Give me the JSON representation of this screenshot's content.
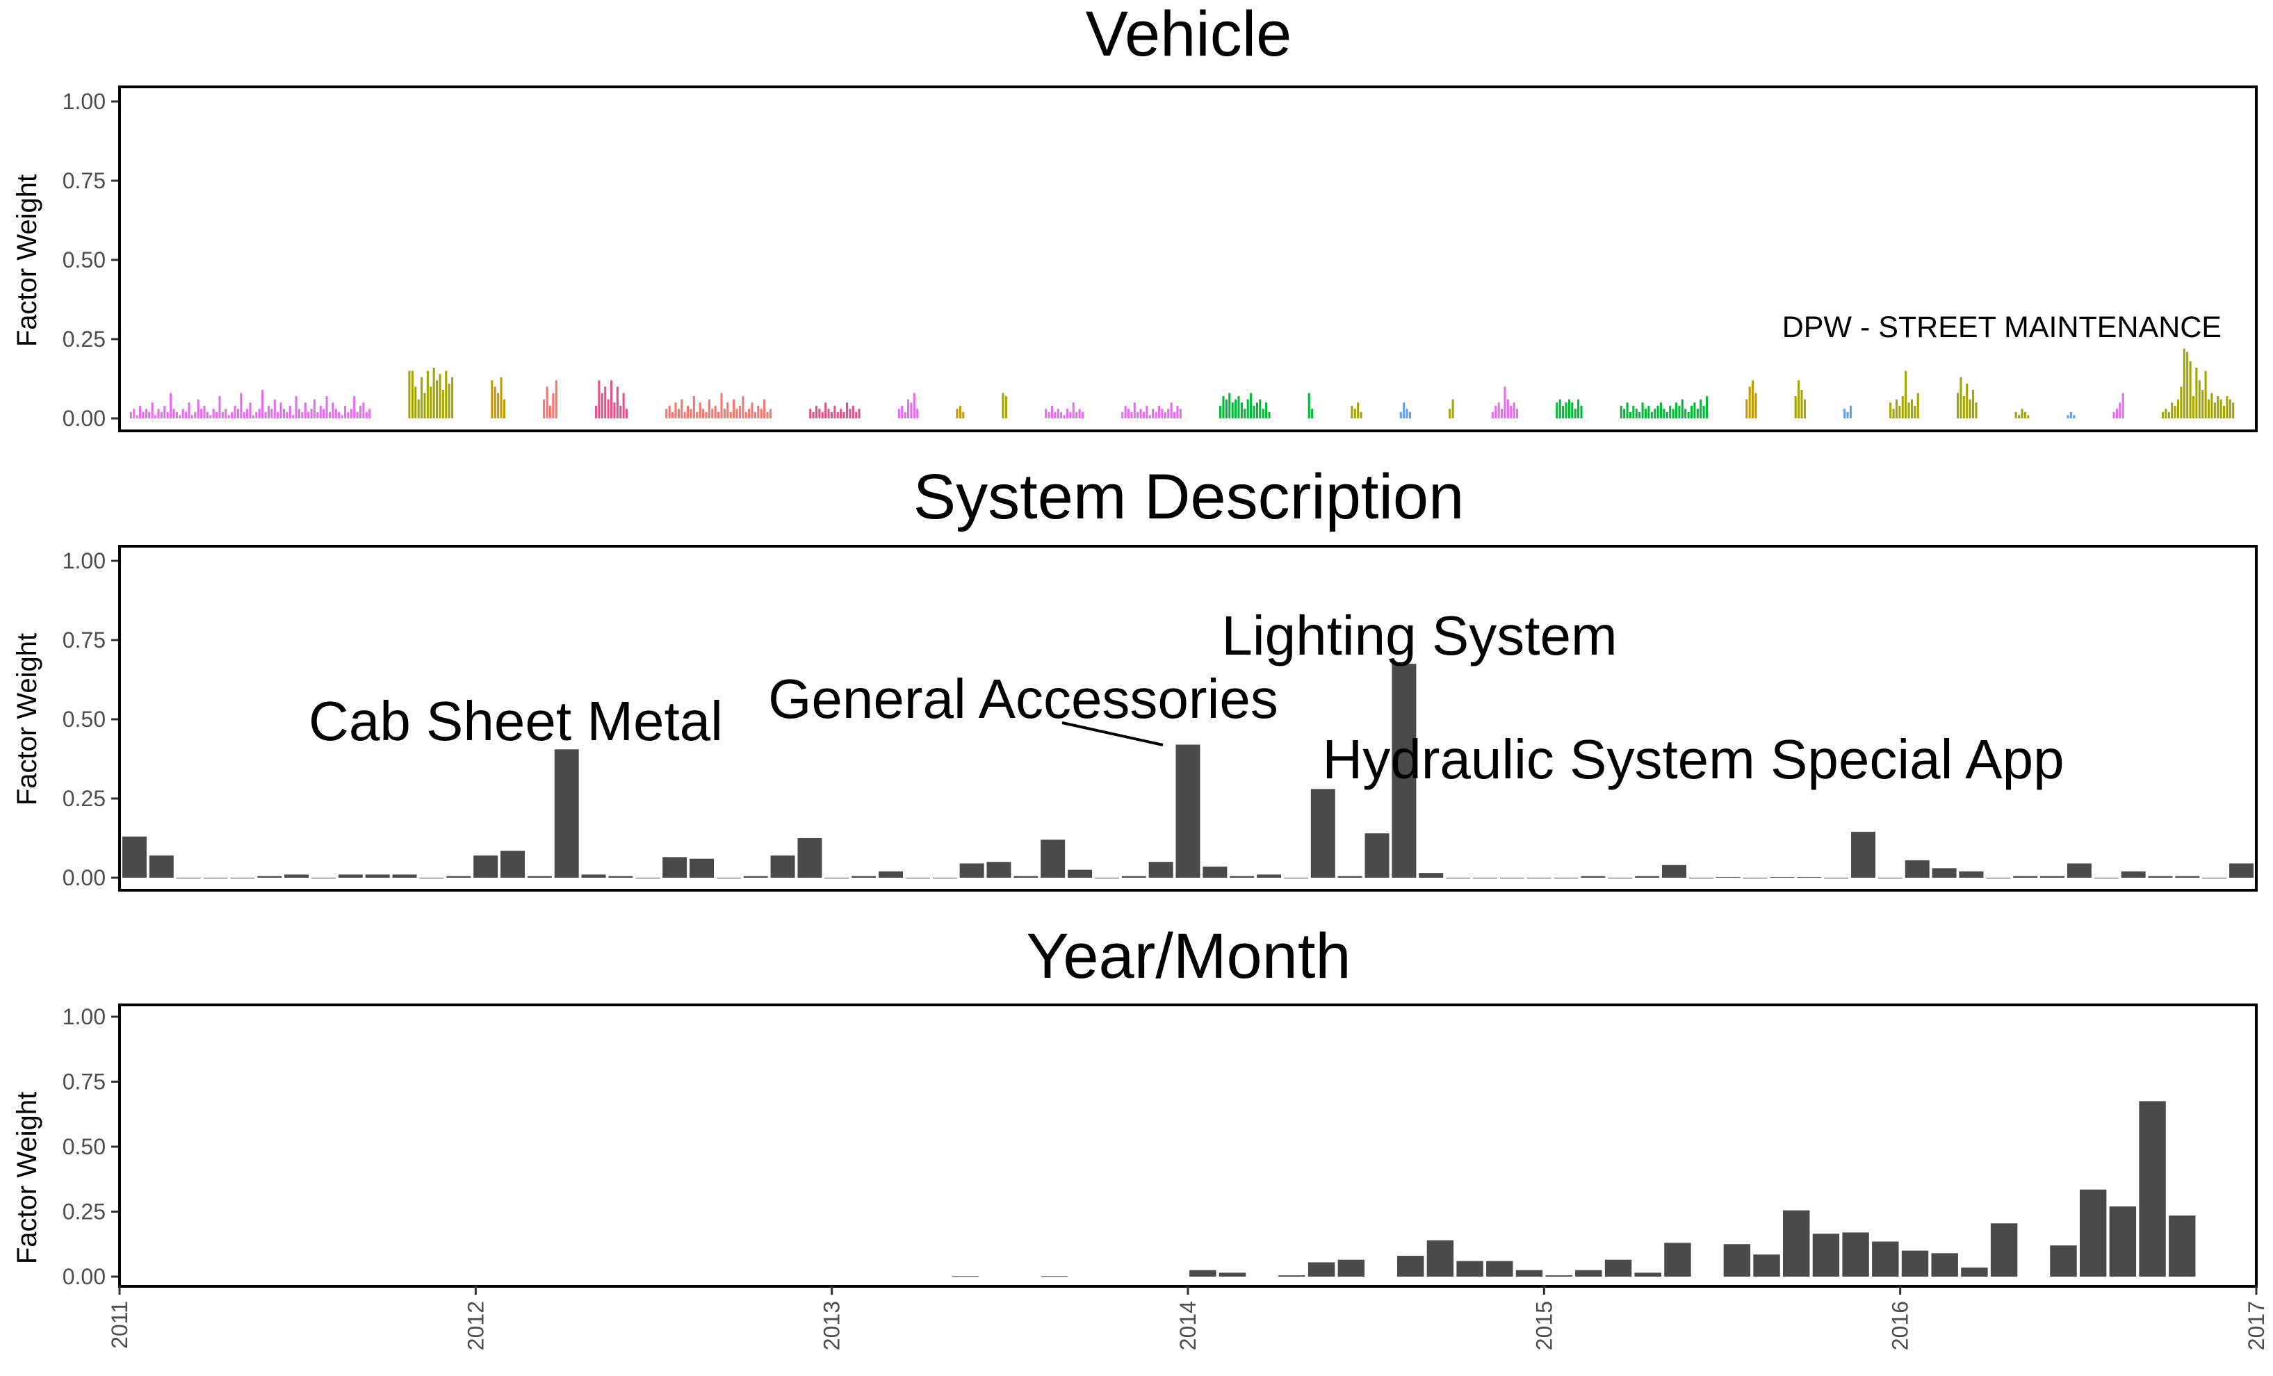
{
  "figure": {
    "panels": [
      "Vehicle",
      "System Description",
      "Year/Month"
    ]
  },
  "chart_data": [
    {
      "type": "bar",
      "title": "Vehicle",
      "ylabel": "Factor Weight",
      "ylim": [
        0,
        1
      ],
      "yticks": [
        "0.00",
        "0.25",
        "0.50",
        "0.75",
        "1.00"
      ],
      "grid": false,
      "legend": "none",
      "annotations": [
        {
          "text": "DPW - STREET MAINTENANCE"
        }
      ],
      "groups": [
        {
          "color": "#e76bf3",
          "values": [
            0.02,
            0.03,
            0.01,
            0.04,
            0.02,
            0.03,
            0.02,
            0.05,
            0.01,
            0.03,
            0.02,
            0.04,
            0.02,
            0.08,
            0.03,
            0.02,
            0.01,
            0.03,
            0.02,
            0.05,
            0.01,
            0.02,
            0.06,
            0.03,
            0.04,
            0.02,
            0.01,
            0.03,
            0.02,
            0.07,
            0.02,
            0.03,
            0.01,
            0.02,
            0.04,
            0.03,
            0.08,
            0.02,
            0.03,
            0.05,
            0.01,
            0.02,
            0.03,
            0.09,
            0.02,
            0.04,
            0.03,
            0.06,
            0.02,
            0.05,
            0.03,
            0.02,
            0.04,
            0.01,
            0.07,
            0.03,
            0.02,
            0.05,
            0.02,
            0.03,
            0.06,
            0.02,
            0.04,
            0.03,
            0.07,
            0.02,
            0.05,
            0.03,
            0.02,
            0.01,
            0.04,
            0.02,
            0.03,
            0.07,
            0.02,
            0.04,
            0.05,
            0.02,
            0.03
          ]
        },
        {
          "color": "#a3a500",
          "values": [
            0.15,
            0.15,
            0.1,
            0.06,
            0.13,
            0.08,
            0.15,
            0.1,
            0.16,
            0.12,
            0.14,
            0.09,
            0.15,
            0.11,
            0.13
          ]
        },
        {
          "color": "#c49a00",
          "values": [
            0.12,
            0.1,
            0.08,
            0.13,
            0.06
          ]
        },
        {
          "color": "#f8766d",
          "values": [
            0.06,
            0.1,
            0.04,
            0.08,
            0.12
          ]
        },
        {
          "color": "#e7518a",
          "values": [
            0.04,
            0.12,
            0.08,
            0.1,
            0.06,
            0.12,
            0.05,
            0.1,
            0.04,
            0.08,
            0.03
          ]
        },
        {
          "color": "#f8766d",
          "values": [
            0.03,
            0.04,
            0.02,
            0.05,
            0.03,
            0.06,
            0.02,
            0.04,
            0.03,
            0.07,
            0.02,
            0.05,
            0.03,
            0.02,
            0.06,
            0.03,
            0.04,
            0.02,
            0.08,
            0.03,
            0.05,
            0.02,
            0.06,
            0.03,
            0.04,
            0.07,
            0.02,
            0.03,
            0.05,
            0.02,
            0.04,
            0.03,
            0.06,
            0.02,
            0.03
          ]
        },
        {
          "color": "#e7518a",
          "values": [
            0.03,
            0.02,
            0.04,
            0.03,
            0.02,
            0.05,
            0.03,
            0.02,
            0.04,
            0.02,
            0.03,
            0.02,
            0.05,
            0.03,
            0.04,
            0.02,
            0.03
          ]
        },
        {
          "color": "#e76bf3",
          "values": [
            0.03,
            0.04,
            0.02,
            0.06,
            0.05,
            0.08,
            0.03
          ]
        },
        {
          "color": "#c49a00",
          "values": [
            0.03,
            0.04,
            0.02
          ]
        },
        {
          "color": "#a3a500",
          "values": [
            0.08,
            0.07
          ]
        },
        {
          "color": "#e76bf3",
          "values": [
            0.03,
            0.02,
            0.04,
            0.02,
            0.03,
            0.02,
            0.01,
            0.03,
            0.02,
            0.05,
            0.02,
            0.03,
            0.02
          ]
        },
        {
          "color": "#e76bf3",
          "values": [
            0.02,
            0.04,
            0.03,
            0.02,
            0.05,
            0.02,
            0.03,
            0.02,
            0.04,
            0.01,
            0.03,
            0.02,
            0.04,
            0.03,
            0.02,
            0.03,
            0.05,
            0.02,
            0.04,
            0.03
          ]
        },
        {
          "color": "#00ba38",
          "values": [
            0.04,
            0.07,
            0.06,
            0.08,
            0.05,
            0.06,
            0.07,
            0.05,
            0.03,
            0.06,
            0.08,
            0.04,
            0.05,
            0.06,
            0.03,
            0.05,
            0.02
          ]
        },
        {
          "color": "#00ba38",
          "values": [
            0.08,
            0.03
          ]
        },
        {
          "color": "#a3a500",
          "values": [
            0.04,
            0.03,
            0.05,
            0.02
          ]
        },
        {
          "color": "#619cff",
          "values": [
            0.02,
            0.05,
            0.03,
            0.02
          ]
        },
        {
          "color": "#a3a500",
          "values": [
            0.03,
            0.06
          ]
        },
        {
          "color": "#e76bf3",
          "values": [
            0.02,
            0.04,
            0.05,
            0.03,
            0.1,
            0.06,
            0.04,
            0.05,
            0.03
          ]
        },
        {
          "color": "#00ba38",
          "values": [
            0.05,
            0.06,
            0.04,
            0.05,
            0.06,
            0.05,
            0.03,
            0.06,
            0.04
          ]
        },
        {
          "color": "#00ba38",
          "values": [
            0.04,
            0.03,
            0.05,
            0.02,
            0.04,
            0.03,
            0.02,
            0.05,
            0.03,
            0.04,
            0.02,
            0.03,
            0.04,
            0.05,
            0.03,
            0.02,
            0.04,
            0.03,
            0.05,
            0.04,
            0.06,
            0.03,
            0.02,
            0.04,
            0.05,
            0.03,
            0.06,
            0.04,
            0.07
          ]
        },
        {
          "color": "#c49a00",
          "values": [
            0.06,
            0.1,
            0.12,
            0.08
          ]
        },
        {
          "color": "#a3a500",
          "values": [
            0.07,
            0.12,
            0.09,
            0.06
          ]
        },
        {
          "color": "#619cff",
          "values": [
            0.03,
            0.02,
            0.04
          ]
        },
        {
          "color": "#a3a500",
          "values": [
            0.05,
            0.03,
            0.06,
            0.04,
            0.07,
            0.15,
            0.05,
            0.06,
            0.04,
            0.08
          ]
        },
        {
          "color": "#a3a500",
          "values": [
            0.08,
            0.13,
            0.07,
            0.11,
            0.06,
            0.09,
            0.05
          ]
        },
        {
          "color": "#a3a500",
          "values": [
            0.02,
            0.01,
            0.03,
            0.02,
            0.01
          ]
        },
        {
          "color": "#619cff",
          "values": [
            0.01,
            0.02,
            0.01
          ]
        },
        {
          "color": "#e76bf3",
          "values": [
            0.02,
            0.03,
            0.05,
            0.08
          ]
        },
        {
          "color": "#a3a500",
          "values": [
            0.02,
            0.03,
            0.02,
            0.05,
            0.04,
            0.06,
            0.1,
            0.22,
            0.21,
            0.18,
            0.07,
            0.16,
            0.12,
            0.09,
            0.15,
            0.06,
            0.08,
            0.05,
            0.07,
            0.06,
            0.04,
            0.07,
            0.06,
            0.05
          ]
        }
      ]
    },
    {
      "type": "bar",
      "title": "System Description",
      "ylabel": "Factor Weight",
      "ylim": [
        0,
        1
      ],
      "yticks": [
        "0.00",
        "0.25",
        "0.50",
        "0.75",
        "1.00"
      ],
      "grid": false,
      "legend": "none",
      "values": [
        0.13,
        0.07,
        0,
        0,
        0,
        0.005,
        0.01,
        0,
        0.01,
        0.01,
        0.01,
        0,
        0.005,
        0.07,
        0.085,
        0.005,
        0.405,
        0.01,
        0.005,
        0,
        0.065,
        0.06,
        0,
        0.005,
        0.07,
        0.125,
        0,
        0.005,
        0.02,
        0,
        0,
        0.045,
        0.05,
        0.005,
        0.12,
        0.025,
        0,
        0.005,
        0.05,
        0.42,
        0.035,
        0.005,
        0.01,
        0,
        0.28,
        0.005,
        0.14,
        0.675,
        0.015,
        0,
        0,
        0,
        0,
        0,
        0.005,
        0,
        0.005,
        0.04,
        0,
        0.002,
        0,
        0.002,
        0.002,
        0,
        0.145,
        0,
        0.055,
        0.03,
        0.02,
        0,
        0.005,
        0.005,
        0.045,
        0,
        0.02,
        0.005,
        0.005,
        0,
        0.045
      ],
      "annotations": [
        {
          "text": "Cab Sheet Metal"
        },
        {
          "text": "General Accessories"
        },
        {
          "text": "Lighting System"
        },
        {
          "text": "Hydraulic System Special App"
        }
      ]
    },
    {
      "type": "bar",
      "title": "Year/Month",
      "ylabel": "Factor Weight",
      "ylim": [
        0,
        1
      ],
      "yticks": [
        "0.00",
        "0.25",
        "0.50",
        "0.75",
        "1.00"
      ],
      "grid": false,
      "legend": "none",
      "x": [
        "2011",
        "2012",
        "2013",
        "2014",
        "2015",
        "2016",
        "2017"
      ],
      "bars": [
        {
          "month": "2013-05",
          "value": 0.002
        },
        {
          "month": "2013-08",
          "value": 0.002
        },
        {
          "month": "2014-01",
          "value": 0.025
        },
        {
          "month": "2014-02",
          "value": 0.015
        },
        {
          "month": "2014-04",
          "value": 0.005
        },
        {
          "month": "2014-05",
          "value": 0.055
        },
        {
          "month": "2014-06",
          "value": 0.065
        },
        {
          "month": "2014-08",
          "value": 0.08
        },
        {
          "month": "2014-09",
          "value": 0.14
        },
        {
          "month": "2014-10",
          "value": 0.06
        },
        {
          "month": "2014-11",
          "value": 0.06
        },
        {
          "month": "2014-12",
          "value": 0.025
        },
        {
          "month": "2015-01",
          "value": 0.005
        },
        {
          "month": "2015-02",
          "value": 0.025
        },
        {
          "month": "2015-03",
          "value": 0.065
        },
        {
          "month": "2015-04",
          "value": 0.015
        },
        {
          "month": "2015-05",
          "value": 0.13
        },
        {
          "month": "2015-07",
          "value": 0.125
        },
        {
          "month": "2015-08",
          "value": 0.085
        },
        {
          "month": "2015-09",
          "value": 0.255
        },
        {
          "month": "2015-10",
          "value": 0.165
        },
        {
          "month": "2015-11",
          "value": 0.17
        },
        {
          "month": "2015-12",
          "value": 0.135
        },
        {
          "month": "2016-01",
          "value": 0.1
        },
        {
          "month": "2016-02",
          "value": 0.09
        },
        {
          "month": "2016-03",
          "value": 0.035
        },
        {
          "month": "2016-04",
          "value": 0.205
        },
        {
          "month": "2016-06",
          "value": 0.12
        },
        {
          "month": "2016-07",
          "value": 0.335
        },
        {
          "month": "2016-08",
          "value": 0.27
        },
        {
          "month": "2016-09",
          "value": 0.675
        },
        {
          "month": "2016-10",
          "value": 0.235
        }
      ]
    }
  ]
}
